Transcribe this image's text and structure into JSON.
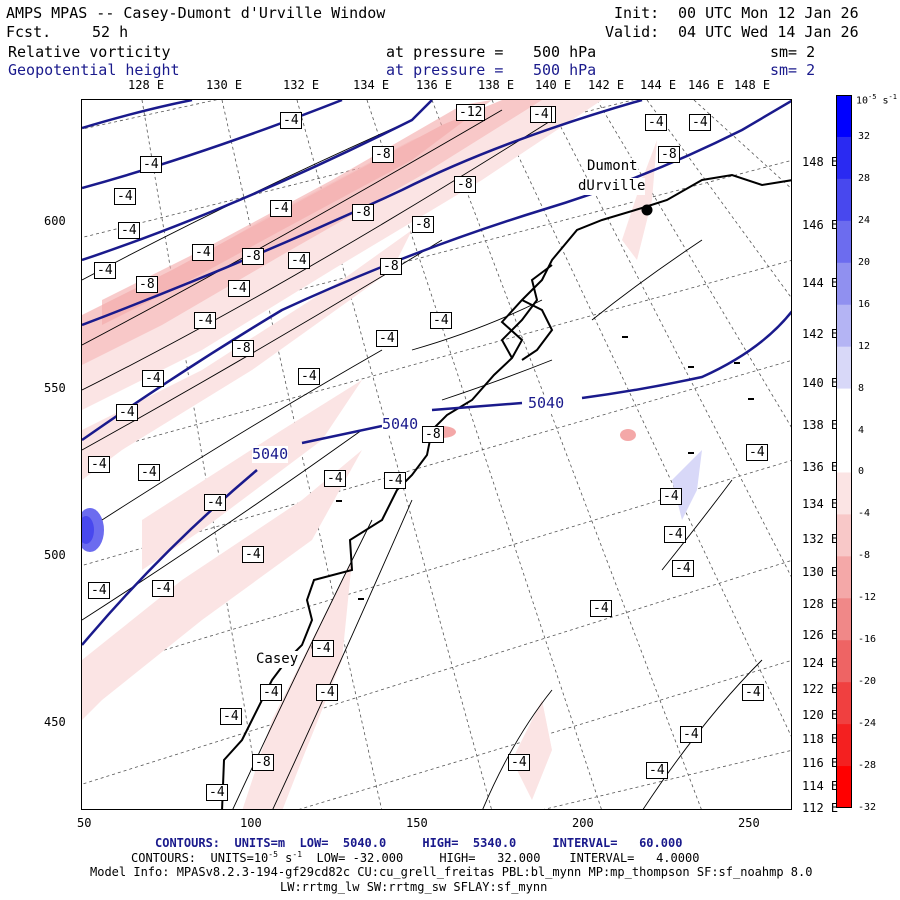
{
  "header": {
    "title": "AMPS MPAS -- Casey-Dumont d'Urville Window",
    "forecast_label": "Fcst.",
    "forecast_value": "52 h",
    "init_label": "Init:",
    "init_value": "00 UTC Mon 12 Jan 26",
    "valid_label": "Valid:",
    "valid_value": "04 UTC Wed 14 Jan 26",
    "field1": "Relative vorticity",
    "field1_pressure": "at pressure =",
    "field1_level": "500 hPa",
    "field1_sm": "sm= 2",
    "field2": "Geopotential height",
    "field2_pressure": "at pressure =",
    "field2_level": "500 hPa",
    "field2_sm": "sm= 2"
  },
  "map": {
    "stations": [
      "Dumont",
      "dUrville",
      "Casey"
    ],
    "height_contour_label": "5040",
    "vorticity_labels": [
      "-4",
      "-8",
      "-12",
      "4"
    ],
    "top_lon_labels": [
      "128 E",
      "130 E",
      "132 E",
      "134 E",
      "136 E",
      "138 E",
      "140 E",
      "142 E",
      "144 E",
      "146 E",
      "148 E"
    ],
    "right_lon_labels": [
      "148 E",
      "146 E",
      "144 E",
      "142 E",
      "140 E",
      "138 E",
      "136 E",
      "134 E",
      "132 E",
      "130 E",
      "128 E",
      "126 E",
      "124 E",
      "122 E",
      "120 E",
      "118 E",
      "116 E",
      "114 E",
      "112 E"
    ],
    "y_ticks": [
      "600",
      "550",
      "500",
      "450"
    ],
    "x_ticks": [
      "50",
      "100",
      "150",
      "200",
      "250"
    ]
  },
  "colorbar": {
    "unit": "10",
    "unit_exp": "-5",
    "unit_suffix": "s",
    "unit_suffix_exp": "-1",
    "labels": [
      "32",
      "28",
      "24",
      "20",
      "16",
      "12",
      "8",
      "4",
      "0",
      "-4",
      "-8",
      "-12",
      "-16",
      "-20",
      "-24",
      "-28",
      "-32"
    ],
    "colors": [
      "#0000ff",
      "#2a2af2",
      "#4848ee",
      "#6c6cef",
      "#9090f0",
      "#b4b4f4",
      "#d8d8f8",
      "#ffffff",
      "#ffffff",
      "#fbe4e4",
      "#f8c8c8",
      "#f4a8a8",
      "#f08888",
      "#ee6464",
      "#f04040",
      "#f42020",
      "#ff0000"
    ]
  },
  "footer": {
    "line1_contours": "CONTOURS:",
    "line1_units": "UNITS=m",
    "line1_low": "LOW=  5040.0",
    "line1_high": "HIGH=  5340.0",
    "line1_interval": "INTERVAL=   60.000",
    "line2_contours": "CONTOURS:",
    "line2_units": "UNITS=10",
    "line2_units_exp": "-5",
    "line2_units_s": "s",
    "line2_units_s_exp": "-1",
    "line2_low": "LOW= -32.000",
    "line2_high": "HIGH=   32.000",
    "line2_interval": "INTERVAL=   4.0000",
    "model_info": "Model Info: MPASv8.2.3-194-gf29cd82c CU:cu_grell_freitas PBL:bl_mynn MP:mp_thompson SF:sf_noahmp 8.0",
    "model_info2": "LW:rrtmg_lw SW:rrtmg_sw SFLAY:sf_mynn"
  }
}
